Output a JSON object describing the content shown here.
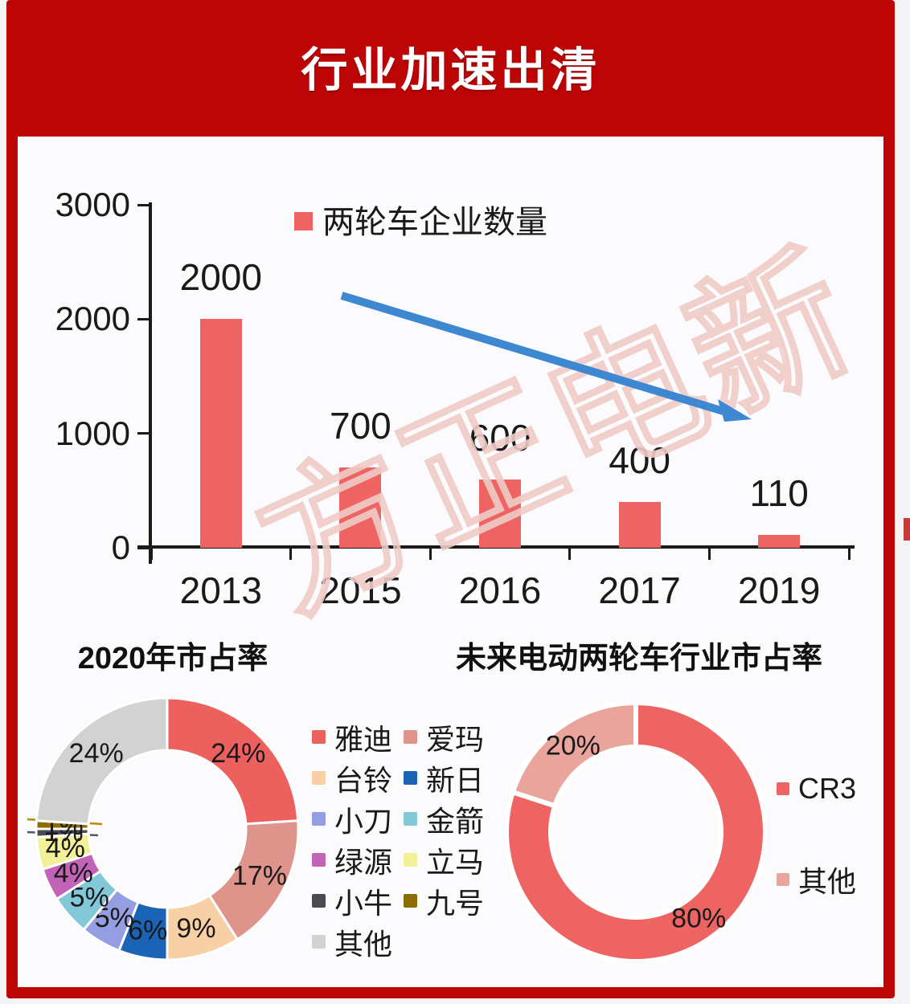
{
  "header": {
    "title": "行业加速出清"
  },
  "watermark": {
    "text": "方正电新"
  },
  "colors": {
    "frame_red": "#BE0506",
    "panel_bg": "#FBFBFD",
    "page_bg": "#F4F4F7",
    "bar_red": "#EE6462",
    "arrow_blue": "#3D88D1",
    "watermark_pink": "#F0CCC7",
    "axis_black": "#1A1A1A",
    "edge_fragment_red": "#C43B3B",
    "leader_line_gold": "#B8860B",
    "leader_line_gray": "#55555C"
  },
  "chart_data": [
    {
      "type": "bar",
      "legend_label": "两轮车企业数量",
      "legend_color": "#EE6462",
      "categories": [
        "2013",
        "2015",
        "2016",
        "2017",
        "2019"
      ],
      "values": [
        2000,
        700,
        600,
        400,
        110
      ],
      "bar_color": "#EE6462",
      "ylim": [
        0,
        3000
      ],
      "yticks": [
        3000,
        2000,
        1000,
        0
      ],
      "grid": false,
      "annotation": "declining trend arrow"
    },
    {
      "type": "pie",
      "donut": true,
      "title": "2020年市占率",
      "label_format": "percent",
      "slices": [
        {
          "label": "雅迪",
          "value": 24,
          "color": "#EC605E"
        },
        {
          "label": "爱玛",
          "value": 17,
          "color": "#DE938B"
        },
        {
          "label": "台铃",
          "value": 9,
          "color": "#F8D0A6"
        },
        {
          "label": "新日",
          "value": 6,
          "color": "#1A63B5"
        },
        {
          "label": "小刀",
          "value": 5,
          "color": "#959EE3"
        },
        {
          "label": "金箭",
          "value": 5,
          "color": "#82C8D8"
        },
        {
          "label": "绿源",
          "value": 4,
          "color": "#C263B8"
        },
        {
          "label": "立马",
          "value": 4,
          "color": "#F2F098"
        },
        {
          "label": "小牛",
          "value": 1,
          "color": "#4A4A52"
        },
        {
          "label": "九号",
          "value": 1,
          "color": "#8B6D00"
        },
        {
          "label": "其他",
          "value": 24,
          "color": "#D2D2D2"
        }
      ]
    },
    {
      "type": "pie",
      "donut": true,
      "title": "未来电动两轮车行业市占率",
      "label_format": "percent",
      "slices": [
        {
          "label": "CR3",
          "value": 80,
          "color": "#ED6463"
        },
        {
          "label": "其他",
          "value": 20,
          "color": "#E9A49C"
        }
      ]
    }
  ]
}
